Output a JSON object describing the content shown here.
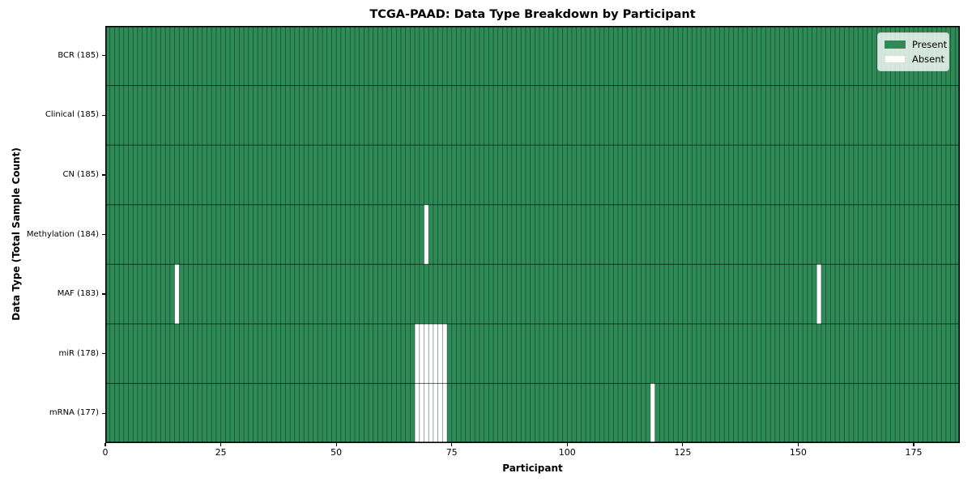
{
  "figure": {
    "title": "TCGA-PAAD: Data Type Breakdown by Participant",
    "xlabel": "Participant",
    "ylabel": "Data Type (Total Sample Count)"
  },
  "colors": {
    "present": "#2e8b57",
    "absent": "#ffffff",
    "cell_edge": "rgba(0,0,0,0.5)",
    "row_divider": "rgba(0,0,0,0.6)",
    "plot_border": "#000000",
    "tick": "#000000",
    "legend_bg": "rgba(255,255,255,0.8)",
    "legend_border": "#cccccc"
  },
  "chart_data": {
    "type": "heatmap",
    "title": "TCGA-PAAD: Data Type Breakdown by Participant",
    "xlabel": "Participant",
    "ylabel": "Data Type (Total Sample Count)",
    "n_participants": 185,
    "xlim": [
      0,
      185
    ],
    "x_ticks": [
      0,
      25,
      50,
      75,
      100,
      125,
      150,
      175
    ],
    "grid": false,
    "legend_position": "upper-right",
    "legend": [
      {
        "label": "Present",
        "color": "#2e8b57"
      },
      {
        "label": "Absent",
        "color": "#ffffff"
      }
    ],
    "rows": [
      {
        "label": "BCR (185)",
        "data_type": "BCR",
        "present_count": 185,
        "absent_participants": []
      },
      {
        "label": "Clinical (185)",
        "data_type": "Clinical",
        "present_count": 185,
        "absent_participants": []
      },
      {
        "label": "CN (185)",
        "data_type": "CN",
        "present_count": 185,
        "absent_participants": []
      },
      {
        "label": "Methylation (184)",
        "data_type": "Methylation",
        "present_count": 184,
        "absent_participants": [
          69
        ]
      },
      {
        "label": "MAF (183)",
        "data_type": "MAF",
        "present_count": 183,
        "absent_participants": [
          15,
          154
        ]
      },
      {
        "label": "miR (178)",
        "data_type": "miR",
        "present_count": 178,
        "absent_participants": [
          67,
          68,
          69,
          70,
          71,
          72,
          73
        ]
      },
      {
        "label": "mRNA (177)",
        "data_type": "mRNA",
        "present_count": 177,
        "absent_participants": [
          67,
          68,
          69,
          70,
          71,
          72,
          73,
          118
        ]
      }
    ]
  }
}
